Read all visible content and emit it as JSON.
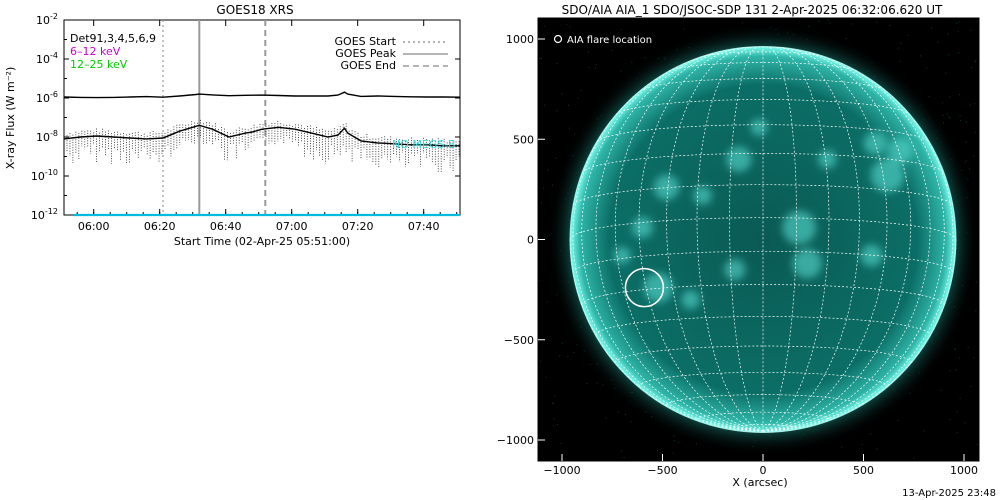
{
  "goes_plot": {
    "title": "GOES18 XRS",
    "ylabel": "X-ray Flux (W m⁻²)",
    "xlabel": "Start Time (02-Apr-25 05:51:00)",
    "overlay_text": "NO MEGS-B",
    "yticks": [
      {
        "value": -2,
        "label_base": "10",
        "label_exp": "-2"
      },
      {
        "value": -4,
        "label_base": "10",
        "label_exp": "-4"
      },
      {
        "value": -6,
        "label_base": "10",
        "label_exp": "-6"
      },
      {
        "value": -8,
        "label_base": "10",
        "label_exp": "-8"
      },
      {
        "value": -10,
        "label_base": "10",
        "label_exp": "-10"
      },
      {
        "value": -12,
        "label_base": "10",
        "label_exp": "-12"
      }
    ],
    "xticks": [
      {
        "minutes": 9,
        "label": "06:00"
      },
      {
        "minutes": 29,
        "label": "06:20"
      },
      {
        "minutes": 49,
        "label": "06:40"
      },
      {
        "minutes": 69,
        "label": "07:00"
      },
      {
        "minutes": 89,
        "label": "07:20"
      },
      {
        "minutes": 109,
        "label": "07:40"
      }
    ],
    "legend_left": [
      {
        "label": "Det91,3,4,5,6,9",
        "color": "#000000"
      },
      {
        "label": "6–12 keV",
        "color": "#cc00cc"
      },
      {
        "label": "12–25 keV",
        "color": "#00cc00"
      }
    ],
    "legend_right": [
      {
        "label": "GOES Start",
        "dash": "2,3",
        "color": "#888888"
      },
      {
        "label": "GOES Peak",
        "dash": "",
        "color": "#888888"
      },
      {
        "label": "GOES End",
        "dash": "6,4",
        "color": "#888888"
      }
    ]
  },
  "chart_data": {
    "type": "line",
    "title": "GOES18 XRS",
    "xlabel": "Start Time (02-Apr-25 05:51:00)",
    "ylabel": "X-ray Flux (W m⁻²)",
    "x_units": "minutes after 05:51:00",
    "y_scale": "log",
    "ylim": [
      1e-12,
      0.01
    ],
    "xlim": [
      0,
      120
    ],
    "events": {
      "goes_start": "06:21",
      "goes_peak": "06:32",
      "goes_end": "06:52"
    },
    "series": [
      {
        "name": "long channel (upper)",
        "color": "#000000",
        "x": [
          0,
          5,
          10,
          15,
          20,
          25,
          30,
          35,
          40,
          41,
          45,
          50,
          55,
          60,
          65,
          70,
          75,
          80,
          83,
          85,
          86,
          90,
          95,
          100,
          105,
          110,
          115,
          120
        ],
        "y": [
          -5.95,
          -5.97,
          -5.98,
          -5.97,
          -5.95,
          -5.93,
          -5.96,
          -5.9,
          -5.82,
          -5.8,
          -5.84,
          -5.88,
          -5.86,
          -5.85,
          -5.87,
          -5.9,
          -5.9,
          -5.9,
          -5.85,
          -5.7,
          -5.8,
          -5.92,
          -5.9,
          -5.92,
          -5.94,
          -5.95,
          -5.95,
          -5.96
        ]
      },
      {
        "name": "short channel (lower)",
        "color": "#000000",
        "x": [
          0,
          5,
          10,
          15,
          20,
          25,
          30,
          35,
          40,
          41,
          45,
          50,
          55,
          57,
          60,
          65,
          70,
          75,
          80,
          83,
          85,
          86,
          90,
          95,
          100,
          105,
          110,
          115,
          120
        ],
        "y": [
          -8.1,
          -8.0,
          -7.95,
          -8.0,
          -8.05,
          -8.1,
          -8.05,
          -7.7,
          -7.45,
          -7.4,
          -7.6,
          -8.0,
          -7.8,
          -7.75,
          -7.6,
          -7.5,
          -7.6,
          -7.8,
          -8.0,
          -7.9,
          -7.55,
          -7.8,
          -8.2,
          -8.3,
          -8.35,
          -8.4,
          -8.4,
          -8.45,
          -8.45
        ]
      },
      {
        "name": "baseline",
        "color": "#00bbdd",
        "x": [
          3,
          120
        ],
        "y": [
          -12,
          -12
        ]
      }
    ]
  },
  "aia_image": {
    "title": "SDO/AIA AIA_1 SDO/JSOC-SDP 131  2-Apr-2025 06:32:06.620 UT",
    "legend_label": "AIA flare location",
    "xlabel": "X (arcsec)",
    "xticks": [
      {
        "value": -1000,
        "label": "−1000"
      },
      {
        "value": -500,
        "label": "−500"
      },
      {
        "value": 0,
        "label": "0"
      },
      {
        "value": 500,
        "label": "500"
      },
      {
        "value": 1000,
        "label": "1000"
      }
    ],
    "yticks": [
      {
        "value": 1000,
        "label": "1000"
      },
      {
        "value": 500,
        "label": "500"
      },
      {
        "value": 0,
        "label": "0"
      },
      {
        "value": -500,
        "label": "−500"
      },
      {
        "value": -1000,
        "label": "−1000"
      }
    ],
    "flare_location_arcsec": {
      "x": -590,
      "y": -240
    },
    "colors": {
      "disk": "#0b6e66",
      "limb": "#7ffff0",
      "grid": "#ffffff",
      "background": "#000000"
    }
  },
  "footer": {
    "timestamp": "13-Apr-2025 23:48"
  }
}
